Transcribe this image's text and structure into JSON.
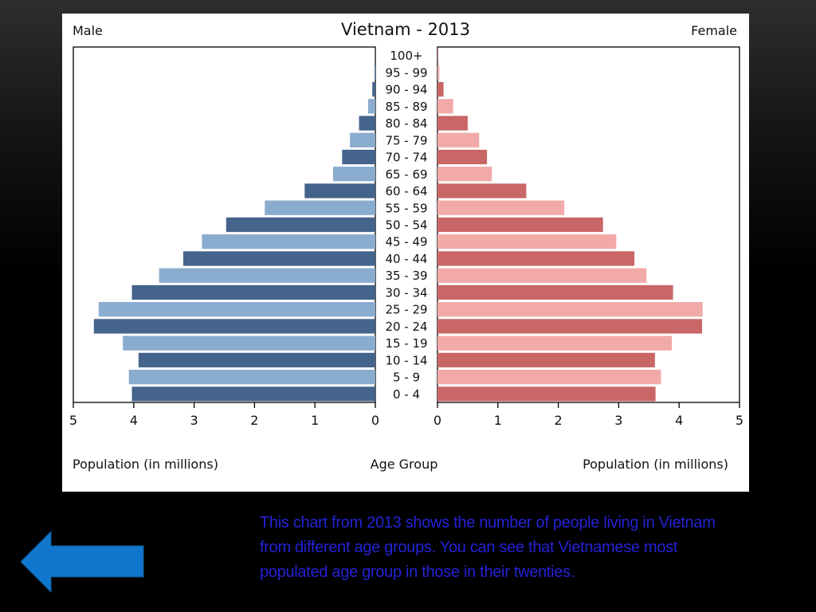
{
  "caption": "This chart from 2013 shows the number of people living in Vietnam from different age groups. You can see that Vietnamese most populated age group in those in their twenties.",
  "back_button_icon": "left-arrow-icon",
  "colors": {
    "male_dark": "#44648c",
    "male_light": "#8aaccf",
    "female_dark": "#c96666",
    "female_light": "#f1aaa8",
    "caption": "#2323d6",
    "arrow": "#1177cc"
  },
  "chart_data": {
    "type": "bar",
    "subtype": "population-pyramid",
    "title": "Vietnam - 2013",
    "left_label": "Male",
    "right_label": "Female",
    "xlabel_left": "Population (in millions)",
    "xlabel_center": "Age Group",
    "xlabel_right": "Population (in millions)",
    "xlim": [
      0,
      5
    ],
    "xticks": [
      "5",
      "4",
      "3",
      "2",
      "1",
      "0"
    ],
    "xticks_right": [
      "0",
      "1",
      "2",
      "3",
      "4",
      "5"
    ],
    "categories": [
      "100+",
      "95 - 99",
      "90 - 94",
      "85 - 89",
      "80 - 84",
      "75 - 79",
      "70 - 74",
      "65 - 69",
      "60 - 64",
      "55 - 59",
      "50 - 54",
      "45 - 49",
      "40 - 44",
      "35 - 39",
      "30 - 34",
      "25 - 29",
      "20 - 24",
      "15 - 19",
      "10 - 14",
      "5 - 9",
      "0 - 4"
    ],
    "series": [
      {
        "name": "Male",
        "values": [
          0.003,
          0.02,
          0.05,
          0.12,
          0.27,
          0.42,
          0.55,
          0.7,
          1.17,
          1.83,
          2.47,
          2.87,
          3.18,
          3.58,
          4.03,
          4.58,
          4.66,
          4.18,
          3.92,
          4.08,
          4.03
        ]
      },
      {
        "name": "Female",
        "values": [
          0.01,
          0.03,
          0.1,
          0.26,
          0.5,
          0.69,
          0.82,
          0.9,
          1.47,
          2.1,
          2.74,
          2.96,
          3.26,
          3.46,
          3.9,
          4.39,
          4.38,
          3.88,
          3.6,
          3.7,
          3.61
        ]
      }
    ]
  }
}
